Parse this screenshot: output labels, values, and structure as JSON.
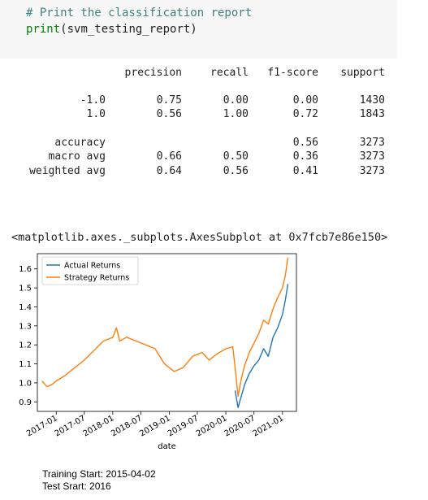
{
  "code_cell": {
    "comment": "# Print the classification report",
    "func": "print",
    "arg": "(svm_testing_report)"
  },
  "report": {
    "headers": [
      "precision",
      "recall",
      "f1-score",
      "support"
    ],
    "rows": [
      {
        "label": "-1.0",
        "precision": "0.75",
        "recall": "0.00",
        "f1": "0.00",
        "support": "1430"
      },
      {
        "label": "1.0",
        "precision": "0.56",
        "recall": "1.00",
        "f1": "0.72",
        "support": "1843"
      },
      {
        "label": "accuracy",
        "precision": "",
        "recall": "",
        "f1": "0.56",
        "support": "3273"
      },
      {
        "label": "macro avg",
        "precision": "0.66",
        "recall": "0.50",
        "f1": "0.36",
        "support": "3273"
      },
      {
        "label": "weighted avg",
        "precision": "0.64",
        "recall": "0.56",
        "f1": "0.41",
        "support": "3273"
      }
    ]
  },
  "repr_text": "<matplotlib.axes._subplots.AxesSubplot at 0x7fcb7e86e150>",
  "chart_data": {
    "type": "line",
    "xlabel": "date",
    "ylabel": "",
    "xlim": [
      "2016-09-01",
      "2021-04-01"
    ],
    "ylim": [
      0.85,
      1.68
    ],
    "x_ticks": [
      "2017-01",
      "2017-07",
      "2018-01",
      "2018-07",
      "2019-01",
      "2019-07",
      "2020-01",
      "2020-07",
      "2021-01"
    ],
    "y_ticks": [
      "0.9",
      "1.0",
      "1.1",
      "1.2",
      "1.3",
      "1.4",
      "1.5",
      "1.6"
    ],
    "legend_position": "top-left",
    "grid": false,
    "series": [
      {
        "name": "Actual Returns",
        "color": "#1f77b4",
        "points": [
          [
            "2020-03-01",
            0.96
          ],
          [
            "2020-03-20",
            0.87
          ],
          [
            "2020-04-10",
            0.93
          ],
          [
            "2020-05-01",
            0.99
          ],
          [
            "2020-06-01",
            1.05
          ],
          [
            "2020-07-01",
            1.09
          ],
          [
            "2020-08-01",
            1.12
          ],
          [
            "2020-09-01",
            1.18
          ],
          [
            "2020-10-01",
            1.14
          ],
          [
            "2020-11-01",
            1.24
          ],
          [
            "2020-12-01",
            1.29
          ],
          [
            "2021-01-01",
            1.36
          ],
          [
            "2021-01-20",
            1.44
          ],
          [
            "2021-02-05",
            1.52
          ]
        ]
      },
      {
        "name": "Strategy Returns",
        "color": "#ff7f0e",
        "points": [
          [
            "2016-10-01",
            1.01
          ],
          [
            "2016-11-01",
            0.98
          ],
          [
            "2016-12-01",
            0.99
          ],
          [
            "2017-01-01",
            1.01
          ],
          [
            "2017-03-01",
            1.04
          ],
          [
            "2017-05-01",
            1.08
          ],
          [
            "2017-07-01",
            1.12
          ],
          [
            "2017-09-01",
            1.17
          ],
          [
            "2017-11-01",
            1.22
          ],
          [
            "2018-01-01",
            1.24
          ],
          [
            "2018-01-25",
            1.29
          ],
          [
            "2018-02-15",
            1.22
          ],
          [
            "2018-04-01",
            1.24
          ],
          [
            "2018-06-01",
            1.22
          ],
          [
            "2018-08-01",
            1.2
          ],
          [
            "2018-10-01",
            1.18
          ],
          [
            "2018-12-01",
            1.1
          ],
          [
            "2019-01-01",
            1.08
          ],
          [
            "2019-02-01",
            1.06
          ],
          [
            "2019-04-01",
            1.08
          ],
          [
            "2019-06-01",
            1.14
          ],
          [
            "2019-08-01",
            1.16
          ],
          [
            "2019-09-15",
            1.12
          ],
          [
            "2019-11-01",
            1.15
          ],
          [
            "2020-01-01",
            1.18
          ],
          [
            "2020-02-15",
            1.19
          ],
          [
            "2020-03-01",
            1.08
          ],
          [
            "2020-03-20",
            0.93
          ],
          [
            "2020-04-10",
            1.02
          ],
          [
            "2020-05-01",
            1.09
          ],
          [
            "2020-06-01",
            1.16
          ],
          [
            "2020-07-01",
            1.21
          ],
          [
            "2020-08-01",
            1.26
          ],
          [
            "2020-09-01",
            1.33
          ],
          [
            "2020-10-01",
            1.31
          ],
          [
            "2020-11-01",
            1.39
          ],
          [
            "2020-12-01",
            1.45
          ],
          [
            "2021-01-01",
            1.5
          ],
          [
            "2021-01-20",
            1.57
          ],
          [
            "2021-02-05",
            1.66
          ]
        ]
      }
    ]
  },
  "footer": {
    "training_start": "Training Start: 2015-04-02",
    "test_start": "Test Srart: 2016"
  }
}
